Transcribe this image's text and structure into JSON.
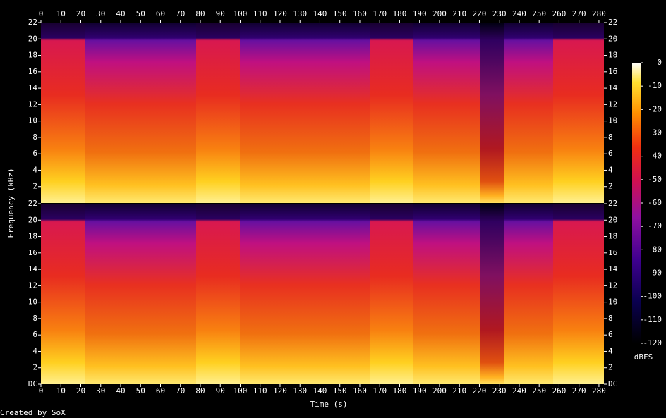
{
  "chart_data": {
    "type": "spectrogram",
    "xlabel": "Time (s)",
    "ylabel": "Frequency (kHz)",
    "credit": "Created by SoX",
    "xlim": [
      0,
      282.5
    ],
    "xticks": [
      0,
      10,
      20,
      30,
      40,
      50,
      60,
      70,
      80,
      90,
      100,
      110,
      120,
      130,
      140,
      150,
      160,
      170,
      180,
      190,
      200,
      210,
      220,
      230,
      240,
      250,
      260,
      270,
      280
    ],
    "ylim": [
      0,
      22
    ],
    "panels": [
      {
        "yticks": [
          2,
          4,
          6,
          8,
          10,
          12,
          14,
          16,
          18,
          20,
          22
        ]
      },
      {
        "yticks": [
          {
            "value": 0,
            "label": "DC"
          },
          2,
          4,
          6,
          8,
          10,
          12,
          14,
          16,
          18,
          20,
          22
        ]
      }
    ],
    "colorbar": {
      "label": "dBFS",
      "lim": [
        -120,
        0
      ],
      "ticks": [
        0,
        -10,
        -20,
        -30,
        -40,
        -50,
        -60,
        -70,
        -80,
        -90,
        -100,
        -110,
        -120
      ]
    }
  }
}
